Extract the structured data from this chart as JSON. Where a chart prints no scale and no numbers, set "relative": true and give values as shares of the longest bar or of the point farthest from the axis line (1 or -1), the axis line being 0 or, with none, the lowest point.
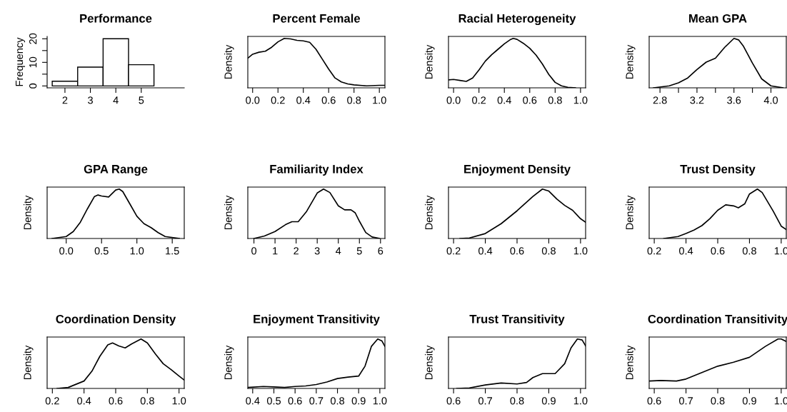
{
  "chart_data": [
    {
      "type": "histogram",
      "title": "Performance",
      "ylabel": "Frequency",
      "bins": [
        1.5,
        2.5,
        3.5,
        4.5,
        5.5
      ],
      "values": [
        2,
        8,
        20,
        9
      ],
      "xlim": [
        1.3,
        6.69
      ],
      "ylim": [
        -0.8,
        21
      ],
      "xticks": [
        2,
        3,
        4,
        5
      ],
      "yticks": [
        0,
        {
          "value": 5,
          "label": null
        },
        10,
        {
          "value": 15,
          "label": null
        },
        20
      ]
    },
    {
      "type": "line",
      "title": "Percent Female",
      "ylabel": "Density",
      "relative": true,
      "tick_labels": "x",
      "xlim": [
        -0.038,
        1.044
      ],
      "xticks": [
        {
          "value": 0,
          "label": "0.0"
        },
        0.2,
        0.4,
        0.6,
        0.8,
        {
          "value": 1,
          "label": "1.0"
        }
      ],
      "x": [
        -0.038,
        0.0,
        0.05,
        0.1,
        0.15,
        0.2,
        0.25,
        0.3,
        0.35,
        0.4,
        0.45,
        0.5,
        0.55,
        0.6,
        0.65,
        0.7,
        0.75,
        0.8,
        0.9,
        1.0,
        1.044
      ],
      "values": [
        0.6,
        0.68,
        0.72,
        0.74,
        0.82,
        0.93,
        1.0,
        0.99,
        0.96,
        0.95,
        0.92,
        0.78,
        0.58,
        0.38,
        0.2,
        0.12,
        0.08,
        0.06,
        0.04,
        0.05,
        0.05
      ]
    },
    {
      "type": "line",
      "title": "Racial Heterogeneity",
      "ylabel": "Density",
      "relative": true,
      "tick_labels": "x",
      "xlim": [
        -0.04,
        1.04
      ],
      "xticks": [
        {
          "value": 0,
          "label": "0.0"
        },
        0.2,
        0.4,
        0.6,
        0.8,
        {
          "value": 1,
          "label": "1.0"
        }
      ],
      "x": [
        -0.04,
        0.0,
        0.05,
        0.1,
        0.15,
        0.2,
        0.25,
        0.3,
        0.35,
        0.4,
        0.45,
        0.47,
        0.5,
        0.55,
        0.6,
        0.65,
        0.7,
        0.75,
        0.8,
        0.85,
        0.9,
        0.96
      ],
      "values": [
        0.16,
        0.17,
        0.15,
        0.13,
        0.2,
        0.36,
        0.54,
        0.67,
        0.78,
        0.89,
        0.98,
        1.0,
        0.98,
        0.9,
        0.8,
        0.66,
        0.48,
        0.27,
        0.11,
        0.04,
        0.01,
        0.0
      ]
    },
    {
      "type": "line",
      "title": "Mean GPA",
      "ylabel": "Density",
      "relative": true,
      "tick_labels": "x",
      "xlim": [
        2.683,
        4.166
      ],
      "xticks": [
        2.8,
        {
          "value": 3.0,
          "label": null
        },
        3.2,
        {
          "value": 3.4,
          "label": null
        },
        3.6,
        {
          "value": 3.8,
          "label": null
        },
        {
          "value": 4,
          "label": "4.0"
        }
      ],
      "x": [
        2.73,
        2.9,
        3.0,
        3.1,
        3.2,
        3.3,
        3.4,
        3.5,
        3.6,
        3.65,
        3.7,
        3.8,
        3.9,
        4.0,
        4.13
      ],
      "values": [
        0.0,
        0.04,
        0.1,
        0.2,
        0.37,
        0.52,
        0.6,
        0.82,
        1.0,
        0.97,
        0.85,
        0.5,
        0.18,
        0.04,
        0.0
      ]
    },
    {
      "type": "line",
      "title": "GPA Range",
      "ylabel": "Density",
      "relative": true,
      "tick_labels": "x",
      "xlim": [
        -0.27,
        1.67
      ],
      "xticks": [
        {
          "value": 0,
          "label": "0.0"
        },
        0.5,
        {
          "value": 1,
          "label": "1.0"
        },
        1.5
      ],
      "x": [
        -0.2,
        0.0,
        0.1,
        0.2,
        0.3,
        0.4,
        0.45,
        0.5,
        0.6,
        0.7,
        0.75,
        0.8,
        0.9,
        1.0,
        1.1,
        1.2,
        1.3,
        1.4,
        1.6
      ],
      "values": [
        0.0,
        0.04,
        0.14,
        0.33,
        0.6,
        0.85,
        0.88,
        0.86,
        0.84,
        0.98,
        1.0,
        0.95,
        0.7,
        0.45,
        0.3,
        0.22,
        0.12,
        0.04,
        0.0
      ]
    },
    {
      "type": "line",
      "title": "Familiarity Index",
      "ylabel": "Density",
      "relative": true,
      "tick_labels": "x",
      "xlim": [
        -0.29,
        6.21
      ],
      "xticks": [
        0,
        1,
        2,
        3,
        4,
        5,
        6
      ],
      "x": [
        0,
        0.5,
        1.0,
        1.5,
        1.8,
        2.1,
        2.5,
        3.0,
        3.3,
        3.6,
        4.0,
        4.3,
        4.6,
        4.8,
        5.0,
        5.3,
        5.6,
        5.95
      ],
      "values": [
        0.0,
        0.05,
        0.14,
        0.28,
        0.34,
        0.34,
        0.55,
        0.92,
        1.0,
        0.93,
        0.66,
        0.58,
        0.58,
        0.52,
        0.35,
        0.12,
        0.03,
        0.0
      ]
    },
    {
      "type": "line",
      "title": "Enjoyment Density",
      "ylabel": "Density",
      "relative": true,
      "tick_labels": "x",
      "xlim": [
        0.168,
        1.032
      ],
      "xticks": [
        0.2,
        0.4,
        0.6,
        0.8,
        {
          "value": 1,
          "label": "1.0"
        }
      ],
      "x": [
        0.24,
        0.3,
        0.4,
        0.5,
        0.6,
        0.7,
        0.76,
        0.8,
        0.85,
        0.9,
        0.95,
        1.0,
        1.032
      ],
      "values": [
        0.0,
        0.01,
        0.1,
        0.3,
        0.56,
        0.85,
        1.0,
        0.96,
        0.8,
        0.67,
        0.57,
        0.4,
        0.33
      ]
    },
    {
      "type": "line",
      "title": "Trust Density",
      "ylabel": "Density",
      "relative": true,
      "tick_labels": "x",
      "xlim": [
        0.168,
        1.032
      ],
      "xticks": [
        0.2,
        0.4,
        0.6,
        0.8,
        {
          "value": 1,
          "label": "1.0"
        }
      ],
      "x": [
        0.26,
        0.35,
        0.4,
        0.45,
        0.5,
        0.55,
        0.6,
        0.65,
        0.7,
        0.73,
        0.77,
        0.8,
        0.85,
        0.88,
        0.95,
        1.0,
        1.032
      ],
      "values": [
        0.0,
        0.04,
        0.1,
        0.17,
        0.26,
        0.4,
        0.57,
        0.68,
        0.66,
        0.62,
        0.7,
        0.9,
        1.0,
        0.93,
        0.55,
        0.25,
        0.18
      ]
    },
    {
      "type": "line",
      "title": "Coordination Density",
      "ylabel": "Density",
      "relative": true,
      "tick_labels": "x",
      "xlim": [
        0.167,
        1.033
      ],
      "xticks": [
        0.2,
        0.4,
        0.6,
        0.8,
        {
          "value": 1,
          "label": "1.0"
        }
      ],
      "x": [
        0.23,
        0.3,
        0.4,
        0.45,
        0.5,
        0.55,
        0.58,
        0.62,
        0.66,
        0.7,
        0.76,
        0.8,
        0.85,
        0.9,
        0.95,
        1.0,
        1.033
      ],
      "values": [
        0.0,
        0.02,
        0.15,
        0.35,
        0.65,
        0.88,
        0.92,
        0.86,
        0.82,
        0.9,
        1.0,
        0.92,
        0.7,
        0.5,
        0.38,
        0.25,
        0.17
      ]
    },
    {
      "type": "line",
      "title": "Enjoyment Transitivity",
      "ylabel": "Density",
      "relative": true,
      "tick_labels": "x",
      "xlim": [
        0.377,
        1.024
      ],
      "xticks": [
        0.4,
        0.5,
        0.6,
        0.7,
        0.8,
        0.9,
        {
          "value": 1,
          "label": "1.0"
        }
      ],
      "x": [
        0.377,
        0.45,
        0.5,
        0.55,
        0.6,
        0.65,
        0.7,
        0.75,
        0.8,
        0.85,
        0.9,
        0.93,
        0.96,
        0.99,
        1.01,
        1.024
      ],
      "values": [
        0.02,
        0.04,
        0.03,
        0.02,
        0.04,
        0.05,
        0.08,
        0.13,
        0.2,
        0.23,
        0.25,
        0.45,
        0.85,
        1.0,
        0.96,
        0.85
      ]
    },
    {
      "type": "line",
      "title": "Trust Transitivity",
      "ylabel": "Density",
      "relative": true,
      "tick_labels": "x",
      "xlim": [
        0.584,
        1.016
      ],
      "xticks": [
        0.6,
        0.7,
        0.8,
        0.9,
        {
          "value": 1,
          "label": "1.0"
        }
      ],
      "x": [
        0.61,
        0.65,
        0.7,
        0.75,
        0.8,
        0.83,
        0.85,
        0.88,
        0.92,
        0.95,
        0.97,
        0.99,
        1.005,
        1.016
      ],
      "values": [
        0.0,
        0.01,
        0.07,
        0.11,
        0.09,
        0.12,
        0.22,
        0.3,
        0.3,
        0.5,
        0.82,
        1.0,
        0.98,
        0.86
      ]
    },
    {
      "type": "line",
      "title": "Coordination Transitivity",
      "ylabel": "Density",
      "relative": true,
      "tick_labels": "x",
      "xlim": [
        0.584,
        1.016
      ],
      "xticks": [
        0.6,
        0.7,
        0.8,
        0.9,
        {
          "value": 1,
          "label": "1.0"
        }
      ],
      "x": [
        0.584,
        0.62,
        0.67,
        0.7,
        0.75,
        0.8,
        0.85,
        0.9,
        0.95,
        0.99,
        1.0,
        1.016
      ],
      "values": [
        0.15,
        0.16,
        0.15,
        0.19,
        0.32,
        0.45,
        0.53,
        0.63,
        0.85,
        1.0,
        1.0,
        0.95
      ]
    }
  ]
}
